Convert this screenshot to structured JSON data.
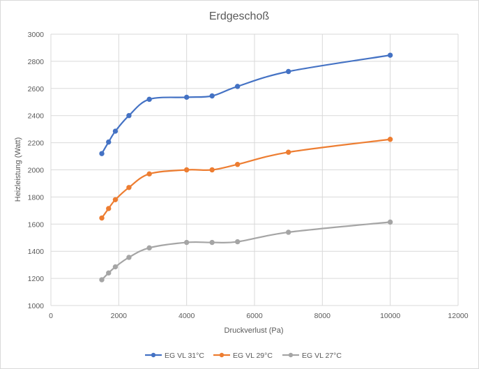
{
  "chart_data": {
    "type": "line",
    "title": "Erdgeschoß",
    "xlabel": "Druckverlust (Pa)",
    "ylabel": "Heizleistung (Watt)",
    "xlim": [
      0,
      12000
    ],
    "ylim": [
      1000,
      3000
    ],
    "x_ticks": [
      "0",
      "2000",
      "4000",
      "6000",
      "8000",
      "10000",
      "12000"
    ],
    "y_ticks": [
      "1000",
      "1200",
      "1400",
      "1600",
      "1800",
      "2000",
      "2200",
      "2400",
      "2600",
      "2800",
      "3000"
    ],
    "grid": true,
    "legend_position": "bottom",
    "smooth": true,
    "series": [
      {
        "name": "EG VL 31°C",
        "color": "#4472c4",
        "x": [
          1500,
          1700,
          1900,
          2300,
          2900,
          4000,
          4750,
          5500,
          7000,
          10000
        ],
        "y": [
          2120,
          2205,
          2285,
          2400,
          2520,
          2535,
          2545,
          2615,
          2725,
          2845
        ]
      },
      {
        "name": "EG VL 29°C",
        "color": "#ed7d31",
        "x": [
          1500,
          1700,
          1900,
          2300,
          2900,
          4000,
          4750,
          5500,
          7000,
          10000
        ],
        "y": [
          1645,
          1715,
          1780,
          1870,
          1970,
          2000,
          2000,
          2040,
          2130,
          2225
        ]
      },
      {
        "name": "EG VL 27°C",
        "color": "#a5a5a5",
        "x": [
          1500,
          1700,
          1900,
          2300,
          2900,
          4000,
          4750,
          5500,
          7000,
          10000
        ],
        "y": [
          1190,
          1240,
          1285,
          1355,
          1425,
          1465,
          1465,
          1470,
          1540,
          1615
        ]
      }
    ]
  }
}
